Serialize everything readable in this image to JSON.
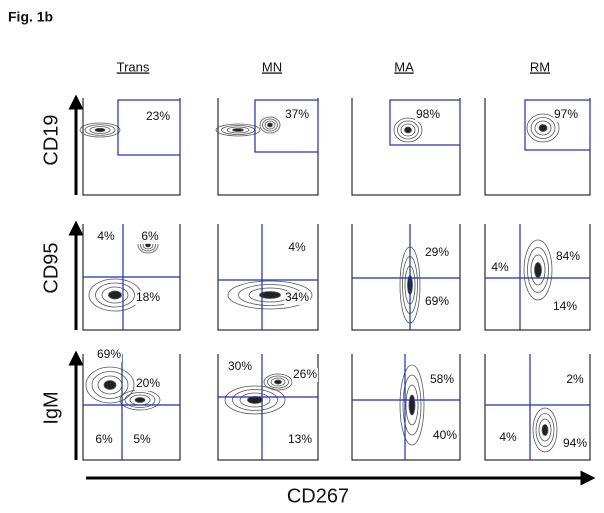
{
  "title": "Fig. 1b",
  "columns": [
    "Trans",
    "MN",
    "MA",
    "RM"
  ],
  "rows": [
    "CD19",
    "CD95",
    "IgM"
  ],
  "x_axis_label": "CD267",
  "panels": [
    [
      [
        "23%"
      ],
      [
        "37%"
      ],
      [
        "98%"
      ],
      [
        "97%"
      ]
    ],
    [
      [
        "4%",
        "6%",
        "18%"
      ],
      [
        "4%",
        "34%"
      ],
      [
        "29%",
        "69%"
      ],
      [
        "4%",
        "84%",
        "14%"
      ]
    ],
    [
      [
        "69%",
        "20%",
        "6%",
        "5%"
      ],
      [
        "30%",
        "26%",
        "13%"
      ],
      [
        "58%",
        "40%"
      ],
      [
        "2%",
        "4%",
        "94%"
      ]
    ]
  ]
}
